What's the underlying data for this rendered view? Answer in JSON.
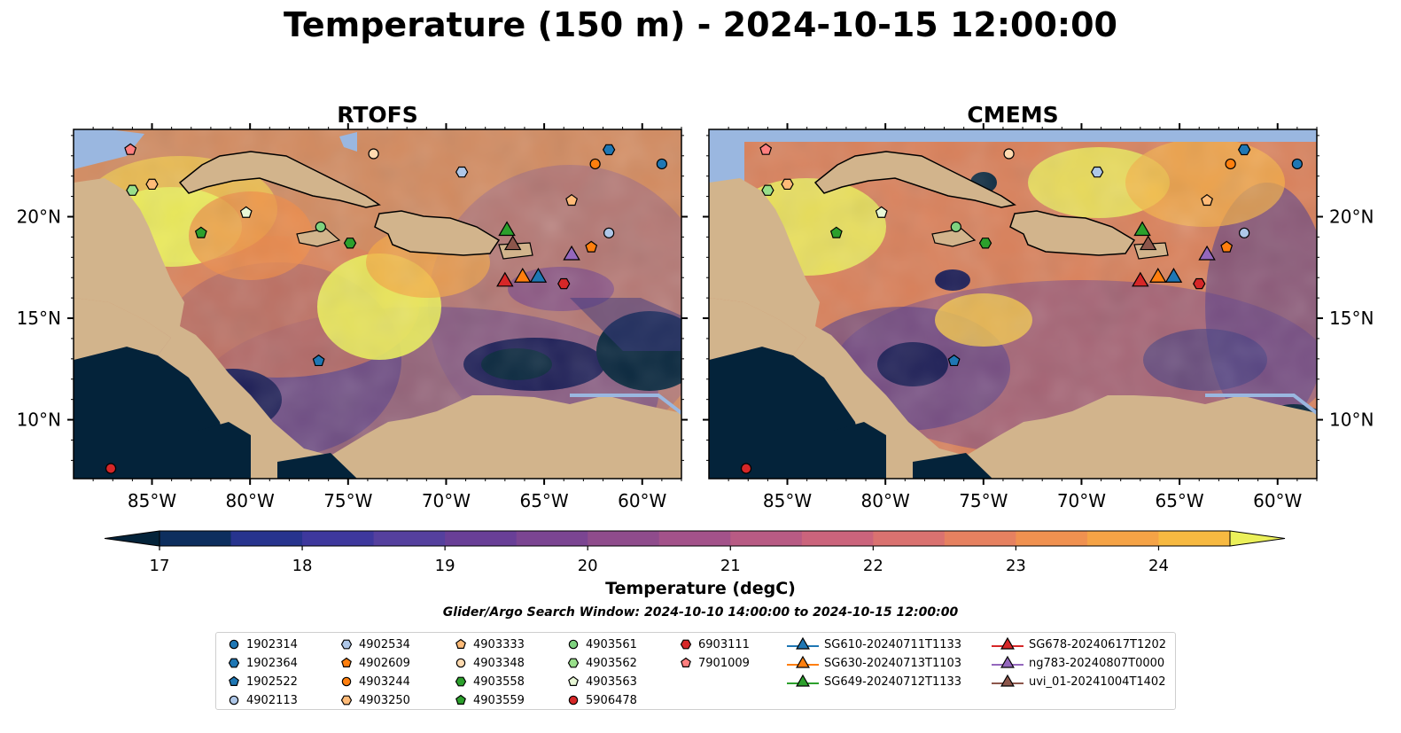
{
  "title": "Temperature (150 m) - 2024-10-15 12:00:00",
  "panels": [
    {
      "title": "RTOFS",
      "lat_labels_side": "left"
    },
    {
      "title": "CMEMS",
      "lat_labels_side": "right"
    }
  ],
  "axes": {
    "lon_ticks": [
      "85°W",
      "80°W",
      "75°W",
      "70°W",
      "65°W",
      "60°W"
    ],
    "lat_ticks": [
      "20°N",
      "15°N",
      "10°N"
    ]
  },
  "colorbar": {
    "label": "Temperature (degC)",
    "min": 17,
    "max": 24.5,
    "step": 0.5,
    "extend": "both",
    "ticks": [
      "17",
      "18",
      "19",
      "20",
      "21",
      "22",
      "23",
      "24"
    ],
    "colormap": "thermal"
  },
  "search_window": "Glider/Argo Search Window: 2024-10-10 14:00:00 to 2024-10-15 12:00:00",
  "colors": {
    "land": "#d2b48c",
    "shallow": "#9ab7e0",
    "deep": "#04233a"
  },
  "platforms": [
    {
      "id": "1902314",
      "marker": "circle",
      "color": "#1f77b4",
      "lon": -59.0,
      "lat": 22.6
    },
    {
      "id": "1902364",
      "marker": "hexagon",
      "color": "#1f77b4",
      "lon": -61.7,
      "lat": 23.3
    },
    {
      "id": "1902522",
      "marker": "pentagon",
      "color": "#1f77b4",
      "lon": -76.5,
      "lat": 12.9
    },
    {
      "id": "4902113",
      "marker": "circle",
      "color": "#aec7e8",
      "lon": -61.7,
      "lat": 19.2
    },
    {
      "id": "4902534",
      "marker": "hexagon",
      "color": "#aec7e8",
      "lon": -69.2,
      "lat": 22.2
    },
    {
      "id": "4902609",
      "marker": "pentagon",
      "color": "#ff7f0e",
      "lon": -62.6,
      "lat": 18.5
    },
    {
      "id": "4903244",
      "marker": "circle",
      "color": "#ff7f0e",
      "lon": -62.4,
      "lat": 22.6
    },
    {
      "id": "4903250",
      "marker": "hexagon",
      "color": "#ffbb78",
      "lon": -85.0,
      "lat": 21.6
    },
    {
      "id": "4903333",
      "marker": "pentagon",
      "color": "#ffbb78",
      "lon": -63.6,
      "lat": 20.8
    },
    {
      "id": "4903348",
      "marker": "circle",
      "color": "#ffdab0",
      "lon": -73.7,
      "lat": 23.1
    },
    {
      "id": "4903558",
      "marker": "hexagon",
      "color": "#2ca02c",
      "lon": -74.9,
      "lat": 18.7
    },
    {
      "id": "4903559",
      "marker": "pentagon",
      "color": "#2ca02c",
      "lon": -82.5,
      "lat": 19.2
    },
    {
      "id": "4903561",
      "marker": "circle",
      "color": "#7fd27f",
      "lon": -76.4,
      "lat": 19.5
    },
    {
      "id": "4903562",
      "marker": "hexagon",
      "color": "#98df8a",
      "lon": -86.0,
      "lat": 21.3
    },
    {
      "id": "4903563",
      "marker": "pentagon",
      "color": "#e8f8d6",
      "lon": -80.2,
      "lat": 20.2
    },
    {
      "id": "5906478",
      "marker": "circle",
      "color": "#d62728",
      "lon": -87.1,
      "lat": 7.6
    },
    {
      "id": "6903111",
      "marker": "hexagon",
      "color": "#d62728",
      "lon": -64.0,
      "lat": 16.7
    },
    {
      "id": "7901009",
      "marker": "pentagon",
      "color": "#ff7f7f",
      "lon": -86.1,
      "lat": 23.3
    },
    {
      "id": "SG610-20240711T1133",
      "marker": "triangle",
      "color": "#1f77b4",
      "lon": -65.3,
      "lat": 17.0
    },
    {
      "id": "SG630-20240713T1103",
      "marker": "triangle",
      "color": "#ff7f0e",
      "lon": -66.1,
      "lat": 17.0
    },
    {
      "id": "SG649-20240712T1133",
      "marker": "triangle",
      "color": "#2ca02c",
      "lon": -66.9,
      "lat": 19.3
    },
    {
      "id": "SG678-20240617T1202",
      "marker": "triangle",
      "color": "#d62728",
      "lon": -67.0,
      "lat": 16.8
    },
    {
      "id": "ng783-20240807T0000",
      "marker": "triangle",
      "color": "#9467bd",
      "lon": -63.6,
      "lat": 18.1
    },
    {
      "id": "uvi_01-20241004T1402",
      "marker": "triangle",
      "color": "#8c564b",
      "lon": -66.6,
      "lat": 18.6
    }
  ]
}
